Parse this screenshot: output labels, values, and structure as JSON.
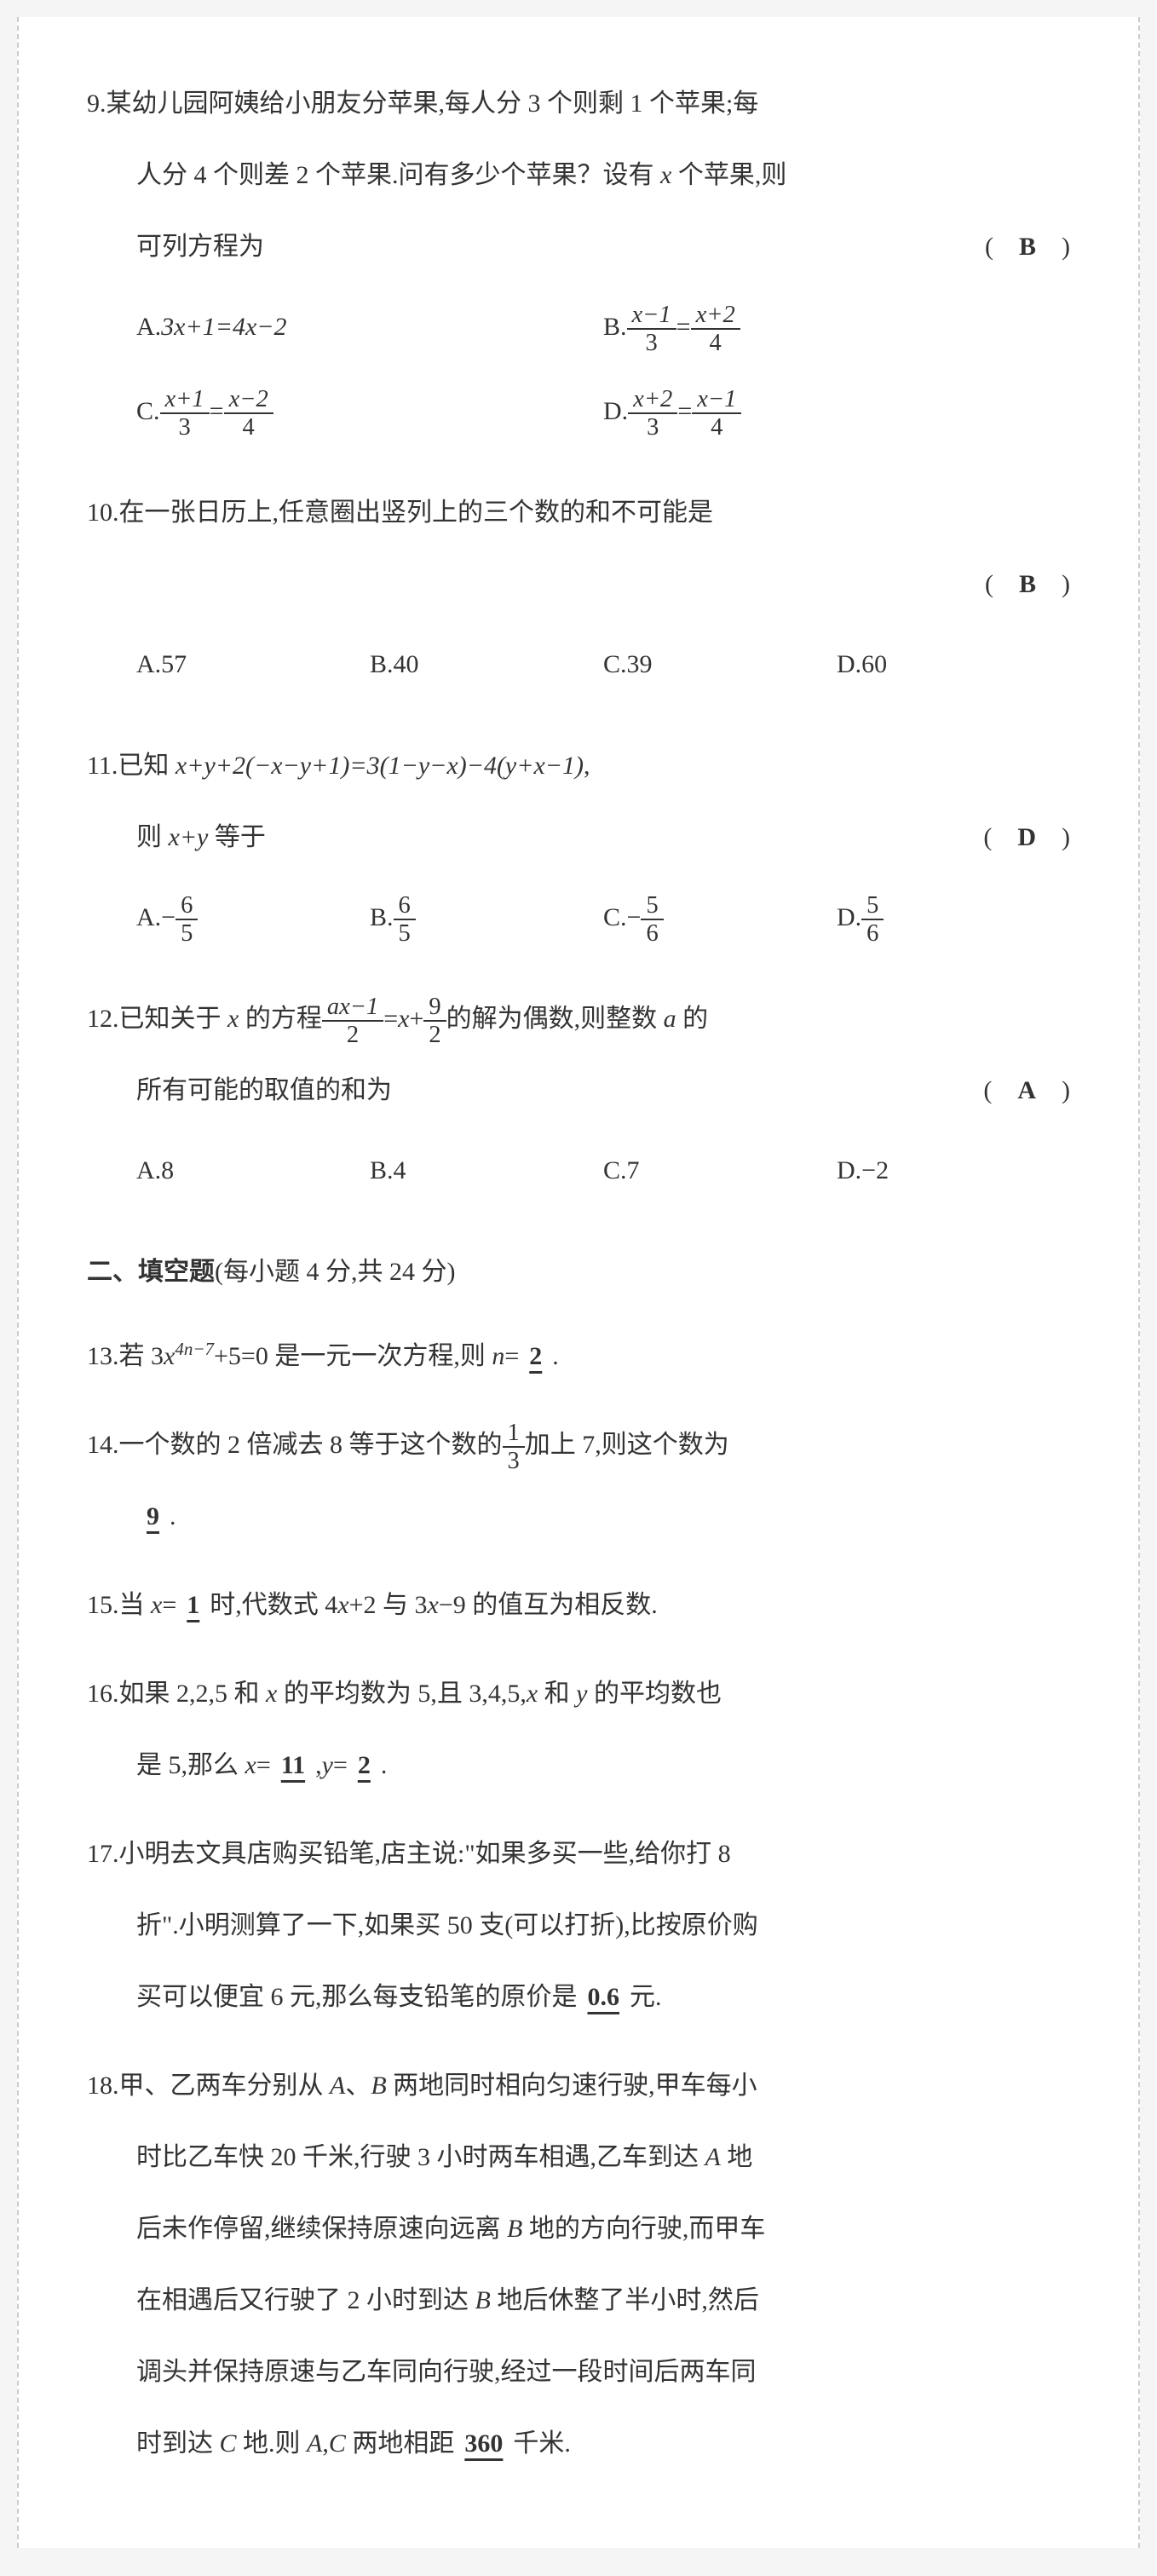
{
  "styling": {
    "background_color": "#f5f5f5",
    "page_background": "#ffffff",
    "text_color": "#333333",
    "border_color": "#cccccc",
    "font_size_base": 30,
    "line_height": 2.8,
    "font_family": "SimSun",
    "underline_color": "#333333"
  },
  "questions": {
    "q9": {
      "number": "9.",
      "text_l1": "某幼儿园阿姨给小朋友分苹果,每人分 3 个则剩 1 个苹果;每",
      "text_l2": "人分 4 个则差 2 个苹果.问有多少个苹果？设有 ",
      "text_l2b": " 个苹果,则",
      "text_l3": "可列方程为",
      "var_x": "x",
      "answer": "B",
      "options": {
        "a_label": "A.",
        "a_text": "3x+1=4x−2",
        "b_label": "B.",
        "b_frac1_num": "x−1",
        "b_frac1_den": "3",
        "b_eq": "=",
        "b_frac2_num": "x+2",
        "b_frac2_den": "4",
        "c_label": "C.",
        "c_frac1_num": "x+1",
        "c_frac1_den": "3",
        "c_eq": "=",
        "c_frac2_num": "x−2",
        "c_frac2_den": "4",
        "d_label": "D.",
        "d_frac1_num": "x+2",
        "d_frac1_den": "3",
        "d_eq": "=",
        "d_frac2_num": "x−1",
        "d_frac2_den": "4"
      }
    },
    "q10": {
      "number": "10.",
      "text": "在一张日历上,任意圈出竖列上的三个数的和不可能是",
      "answer": "B",
      "options": {
        "a": "A.57",
        "b": "B.40",
        "c": "C.39",
        "d": "D.60"
      }
    },
    "q11": {
      "number": "11.",
      "text_l1a": "已知 ",
      "text_l1b": "x+y+2(−x−y+1)=3(1−y−x)−4(y+x−1)",
      "text_l1c": ",",
      "text_l2a": "则 ",
      "text_l2b": "x+y",
      "text_l2c": " 等于",
      "answer": "D",
      "options": {
        "a_label": "A.−",
        "a_num": "6",
        "a_den": "5",
        "b_label": "B.",
        "b_num": "6",
        "b_den": "5",
        "c_label": "C.−",
        "c_num": "5",
        "c_den": "6",
        "d_label": "D.",
        "d_num": "5",
        "d_den": "6"
      }
    },
    "q12": {
      "number": "12.",
      "text_l1a": "已知关于 ",
      "text_l1_x": "x",
      "text_l1b": " 的方程",
      "frac_num": "ax−1",
      "frac_den": "2",
      "text_l1c": "=",
      "text_l1_x2": "x",
      "text_l1d": "+",
      "frac2_num": "9",
      "frac2_den": "2",
      "text_l1e": "的解为偶数,则整数 ",
      "text_l1_a": "a",
      "text_l1f": " 的",
      "text_l2": "所有可能的取值的和为",
      "answer": "A",
      "options": {
        "a": "A.8",
        "b": "B.4",
        "c": "C.7",
        "d": "D.−2"
      }
    },
    "section2": {
      "title": "二、填空题",
      "subtitle": "(每小题 4 分,共 24 分)"
    },
    "q13": {
      "number": "13.",
      "text_a": "若 3",
      "var_x": "x",
      "exp": "4n−7",
      "text_b": "+5=0 是一元一次方程,则 ",
      "var_n": "n",
      "text_c": "=",
      "answer": "2",
      "text_d": "."
    },
    "q14": {
      "number": "14.",
      "text_a": "一个数的 2 倍减去 8 等于这个数的",
      "frac_num": "1",
      "frac_den": "3",
      "text_b": "加上 7,则这个数为",
      "answer": "9",
      "text_c": "."
    },
    "q15": {
      "number": "15.",
      "text_a": "当 ",
      "var_x": "x",
      "text_b": "=",
      "answer": "1",
      "text_c": "时,代数式 4",
      "var_x2": "x",
      "text_d": "+2 与 3",
      "var_x3": "x",
      "text_e": "−9 的值互为相反数."
    },
    "q16": {
      "number": "16.",
      "text_a": "如果 2,2,5 和 ",
      "var_x": "x",
      "text_b": " 的平均数为 5,且 3,4,5,",
      "var_x2": "x",
      "text_c": " 和 ",
      "var_y": "y",
      "text_d": " 的平均数也",
      "text_l2a": "是 5,那么 ",
      "var_x3": "x",
      "text_l2b": "=",
      "answer_x": "11",
      "text_l2c": ",",
      "var_y2": "y",
      "text_l2d": "=",
      "answer_y": "2",
      "text_l2e": "."
    },
    "q17": {
      "number": "17.",
      "text_l1": "小明去文具店购买铅笔,店主说:\"如果多买一些,给你打 8",
      "text_l2": "折\".小明测算了一下,如果买 50 支(可以打折),比按原价购",
      "text_l3a": "买可以便宜 6 元,那么每支铅笔的原价是",
      "answer": "0.6",
      "text_l3b": "元."
    },
    "q18": {
      "number": "18.",
      "text_l1a": "甲、乙两车分别从 ",
      "var_A": "A",
      "text_l1b": "、",
      "var_B": "B",
      "text_l1c": " 两地同时相向匀速行驶,甲车每小",
      "text_l2a": "时比乙车快 20 千米,行驶 3 小时两车相遇,乙车到达 ",
      "var_A2": "A",
      "text_l2b": " 地",
      "text_l3a": "后未作停留,继续保持原速向远离 ",
      "var_B2": "B",
      "text_l3b": " 地的方向行驶,而甲车",
      "text_l4a": "在相遇后又行驶了 2 小时到达 ",
      "var_B3": "B",
      "text_l4b": " 地后休整了半小时,然后",
      "text_l5": "调头并保持原速与乙车同向行驶,经过一段时间后两车同",
      "text_l6a": "时到达 ",
      "var_C": "C",
      "text_l6b": " 地.则 ",
      "var_A3": "A",
      "text_l6c": ",",
      "var_C2": "C",
      "text_l6d": " 两地相距",
      "answer": "360",
      "text_l6e": "千米."
    }
  }
}
